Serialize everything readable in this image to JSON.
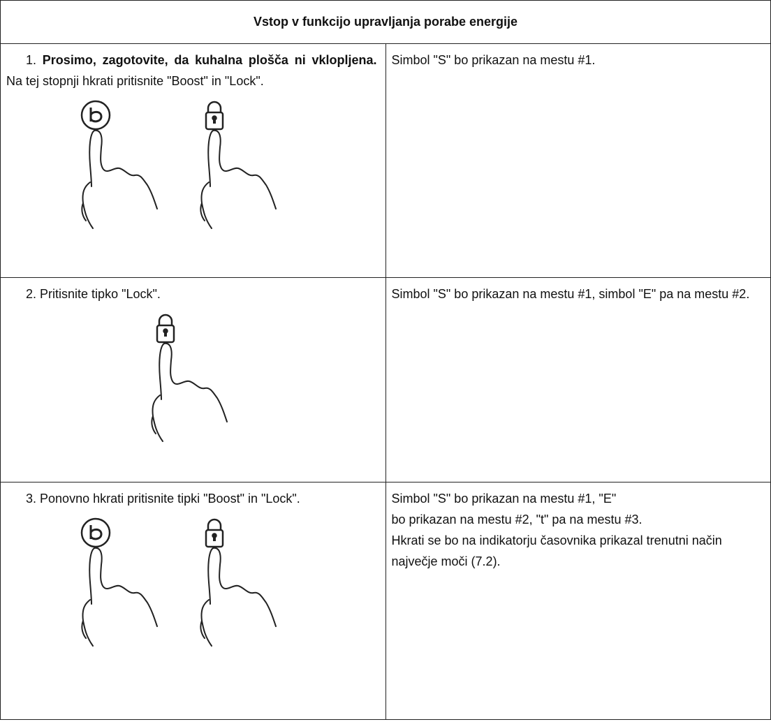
{
  "table": {
    "title": "Vstop v funkcijo upravljanja porabe energije",
    "rows": [
      {
        "number": "1.",
        "bold": "Prosimo, zagotovite, da kuhalna plošča ni vklopljena.",
        "text": "Na tej stopnji hkrati pritisnite \"Boost\" in \"Lock\".",
        "result": [
          "Simbol \"S\" bo prikazan na mestu #1."
        ]
      },
      {
        "number": "2.",
        "text": "Pritisnite tipko \"Lock\".",
        "result": [
          "Simbol \"S\" bo prikazan na mestu #1, simbol \"E\" pa na mestu #2."
        ]
      },
      {
        "number": "3.",
        "text": "Ponovno hkrati pritisnite tipki \"Boost\" in \"Lock\".",
        "result": [
          "Simbol \"S\" bo prikazan na mestu #1, \"E\"",
          "bo prikazan na mestu #2, \"t\" pa na mestu #3.",
          "Hkrati se bo na indikatorju časovnika prikazal trenutni način največje moči (7.2)."
        ]
      }
    ]
  }
}
